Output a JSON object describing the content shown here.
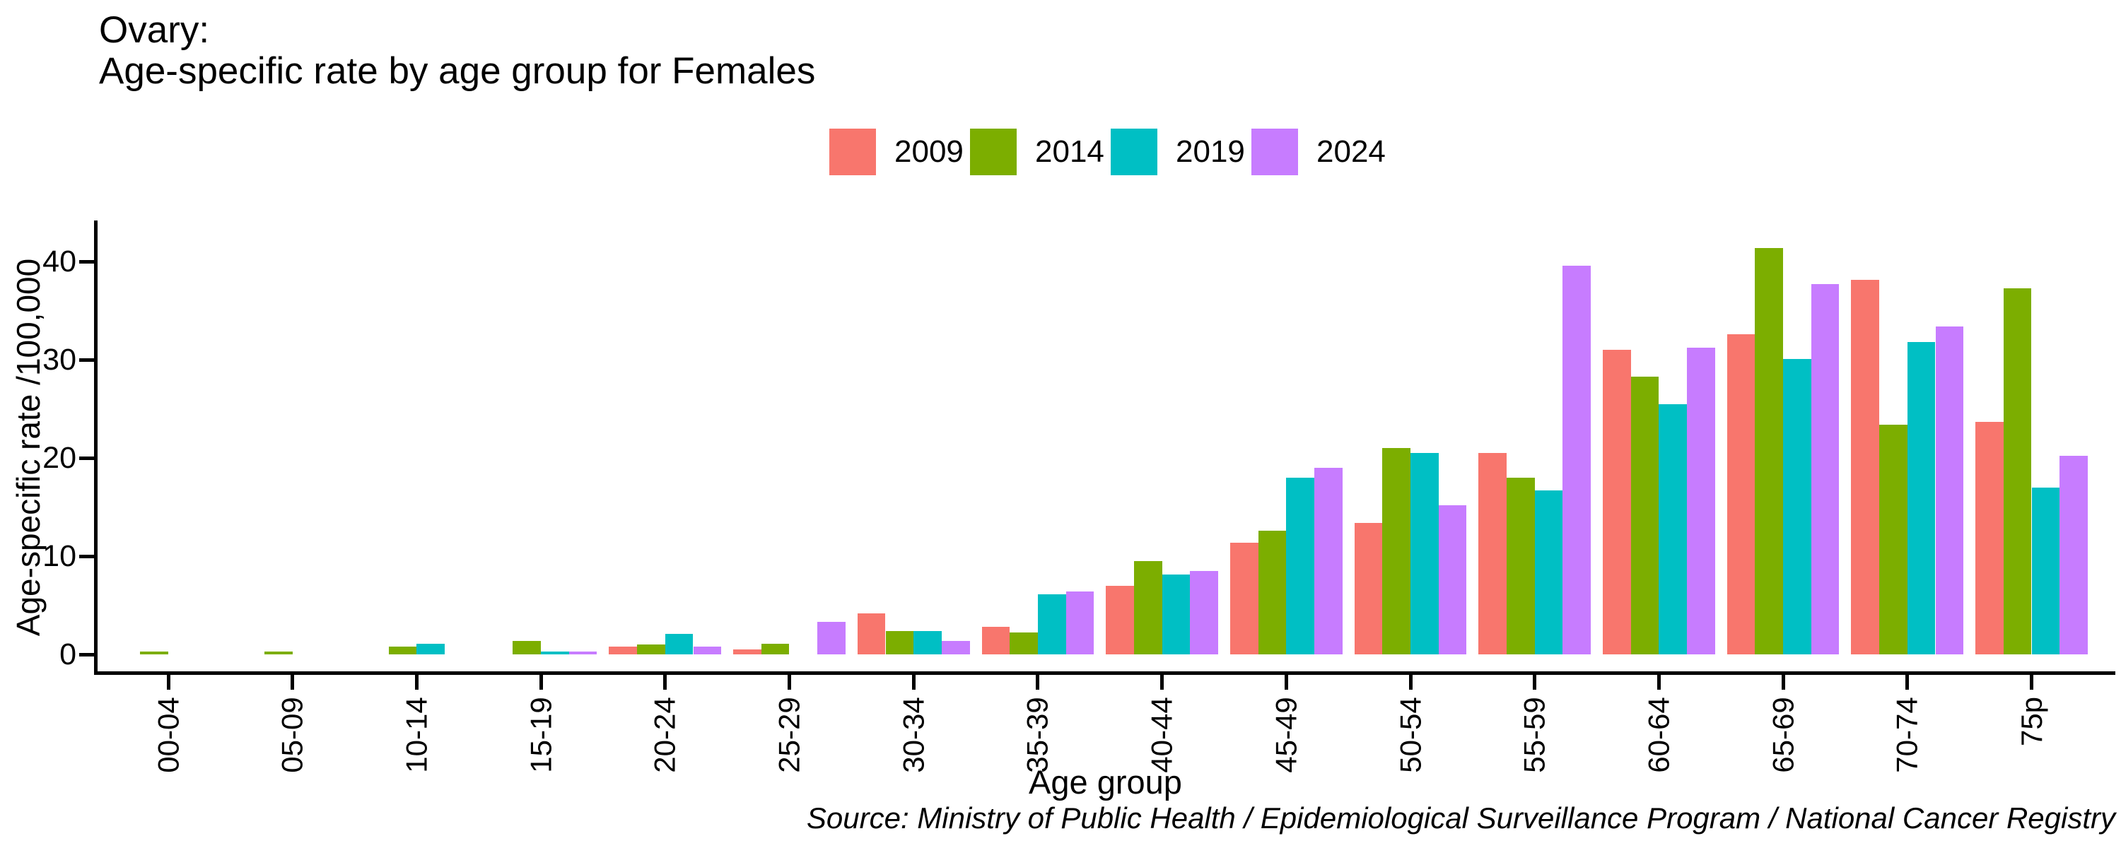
{
  "title": {
    "line1": "Ovary:",
    "line2": "Age-specific rate by age group for Females"
  },
  "legend": {
    "position": "top",
    "items": [
      {
        "label": "2009",
        "color": "#F8766D"
      },
      {
        "label": "2014",
        "color": "#7CAE00"
      },
      {
        "label": "2019",
        "color": "#00BFC4"
      },
      {
        "label": "2024",
        "color": "#C77CFF"
      }
    ]
  },
  "axes": {
    "y": {
      "label": "Age-specific rate /100,000",
      "ticks": [
        0,
        10,
        20,
        30,
        40
      ]
    },
    "x": {
      "label": "Age group"
    }
  },
  "source": "Source: Ministry of Public Health / Epidemiological Surveillance Program / National Cancer Registry",
  "chart_data": {
    "type": "bar",
    "title": "Ovary: Age-specific rate by age group for Females",
    "xlabel": "Age group",
    "ylabel": "Age-specific rate /100,000",
    "ylim": [
      0,
      45
    ],
    "yticks": [
      0,
      10,
      20,
      30,
      40
    ],
    "grid": false,
    "legend_position": "top",
    "categories": [
      "00-04",
      "05-09",
      "10-14",
      "15-19",
      "20-24",
      "25-29",
      "30-34",
      "35-39",
      "40-44",
      "45-49",
      "50-54",
      "55-59",
      "60-64",
      "65-69",
      "70-74",
      "75p"
    ],
    "series": [
      {
        "name": "2009",
        "color": "#F8766D",
        "values": [
          0,
          0,
          0,
          0,
          0.8,
          0.5,
          4.2,
          2.8,
          7.0,
          11.4,
          13.4,
          20.5,
          31.0,
          32.6,
          38.1,
          23.7
        ]
      },
      {
        "name": "2014",
        "color": "#7CAE00",
        "values": [
          0.3,
          0.3,
          0.8,
          1.4,
          1.0,
          1.1,
          2.4,
          2.2,
          9.5,
          12.6,
          21.0,
          18.0,
          28.3,
          41.4,
          23.4,
          37.3
        ]
      },
      {
        "name": "2019",
        "color": "#00BFC4",
        "values": [
          0,
          0,
          1.1,
          0.3,
          2.1,
          0,
          2.4,
          6.1,
          8.1,
          18.0,
          20.5,
          16.7,
          25.5,
          30.1,
          31.8,
          17.0
        ]
      },
      {
        "name": "2024",
        "color": "#C77CFF",
        "values": [
          0,
          0,
          0,
          0.3,
          0.8,
          3.3,
          1.4,
          6.4,
          8.5,
          19.0,
          15.2,
          39.6,
          31.2,
          37.7,
          33.4,
          20.2
        ]
      }
    ]
  }
}
